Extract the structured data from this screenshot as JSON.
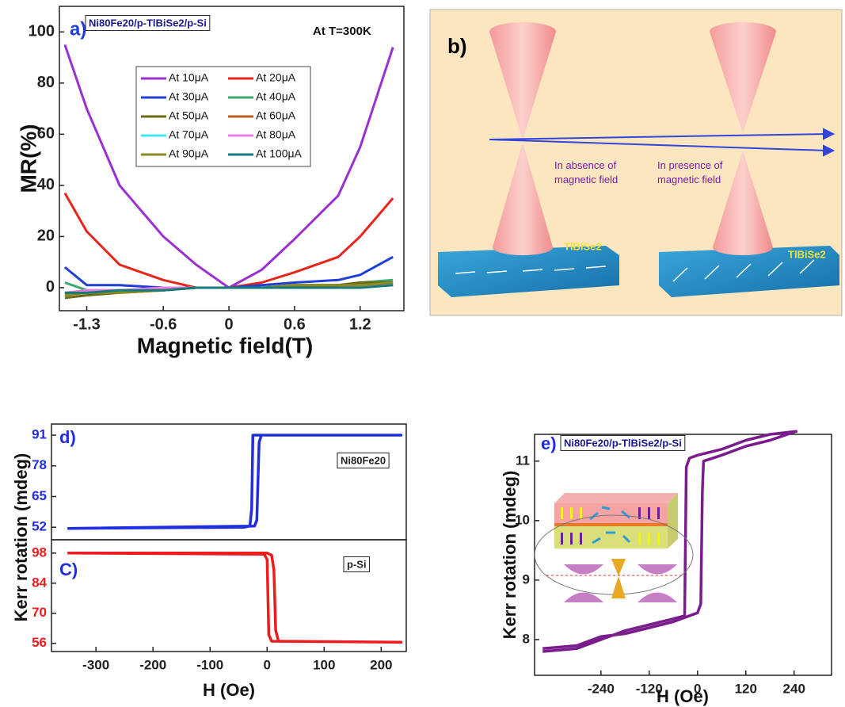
{
  "chart_data": [
    {
      "type": "line",
      "panel_label": "a)",
      "header": "Ni80Fe20/p-TlBiSe2/p-Si",
      "note": "At T=300K",
      "xlabel": "Magnetic field(T)",
      "ylabel": "MR(%)",
      "xlim": [
        -1.55,
        1.6
      ],
      "ylim": [
        -9,
        110
      ],
      "xticks": [
        -1.3,
        -0.6,
        0,
        0.6,
        1.2
      ],
      "yticks": [
        0,
        20,
        40,
        60,
        80,
        100
      ],
      "legend": true,
      "x": [
        -1.5,
        -1.3,
        -1.0,
        -0.6,
        -0.3,
        0,
        0.3,
        0.6,
        1.0,
        1.2,
        1.5
      ],
      "series": [
        {
          "name": "At 10μA",
          "color": "#9b30d0",
          "values": [
            95,
            70,
            40,
            20,
            9,
            0,
            7,
            19,
            36,
            55,
            94
          ]
        },
        {
          "name": "At 20μA",
          "color": "#e8251b",
          "values": [
            37,
            22,
            9,
            3,
            0,
            0,
            2,
            6,
            12,
            20,
            35
          ]
        },
        {
          "name": "At 30μA",
          "color": "#1f3fd6",
          "values": [
            8,
            1,
            1,
            0,
            0,
            0,
            1,
            2,
            3,
            5,
            12
          ]
        },
        {
          "name": "At 40μA",
          "color": "#3aa870",
          "values": [
            2,
            -1,
            -1,
            -1,
            0,
            0,
            0,
            1,
            1,
            2,
            3
          ]
        },
        {
          "name": "At 50μA",
          "color": "#6b6b14",
          "values": [
            -4,
            -3,
            -2,
            -1,
            0,
            0,
            0,
            1,
            1,
            2,
            2
          ]
        },
        {
          "name": "At 60μA",
          "color": "#c05a1a",
          "values": [
            -2,
            -2,
            -1,
            -1,
            0,
            0,
            0,
            0,
            1,
            1,
            1
          ]
        },
        {
          "name": "At 70μA",
          "color": "#3fe8f0",
          "values": [
            -2,
            -2,
            -1,
            -1,
            0,
            0,
            0,
            0,
            0,
            1,
            1
          ]
        },
        {
          "name": "At 80μA",
          "color": "#f07ce8",
          "values": [
            -2,
            -1,
            -1,
            0,
            0,
            0,
            0,
            0,
            0,
            1,
            1
          ]
        },
        {
          "name": "At 90μA",
          "color": "#8a8a20",
          "values": [
            -3,
            -2,
            -2,
            -1,
            0,
            0,
            0,
            1,
            1,
            1,
            2
          ]
        },
        {
          "name": "At 100μA",
          "color": "#157a7a",
          "values": [
            -2,
            -2,
            -1,
            -1,
            0,
            0,
            0,
            0,
            0,
            0,
            1
          ]
        }
      ]
    },
    {
      "type": "line",
      "panel_label": "d)",
      "note": "Ni80Fe20",
      "ylabel": "Kerr rotation (mdeg)",
      "xlim": [
        -378,
        244
      ],
      "ylim": [
        46.7,
        95.7
      ],
      "yticks": [
        52,
        65,
        78,
        91
      ],
      "series": [
        {
          "color": "#1f2fe0",
          "x": [
            -350,
            -40,
            -30,
            -27,
            -25,
            235,
            -10,
            -14,
            -18,
            -22,
            -350
          ],
          "values": [
            51.5,
            52,
            52.5,
            60,
            91,
            91,
            91,
            88,
            55,
            52.5,
            51.5
          ]
        }
      ]
    },
    {
      "type": "line",
      "panel_label": "C)",
      "note": "p-Si",
      "xlabel": "H (Oe)",
      "xlim": [
        -378,
        244
      ],
      "ylim": [
        52.2,
        104.2
      ],
      "xticks": [
        -300,
        -200,
        -100,
        0,
        100,
        200
      ],
      "yticks": [
        56,
        70,
        84,
        98
      ],
      "series": [
        {
          "color": "#ee1c1c",
          "x": [
            -350,
            -5,
            0,
            3,
            8,
            235,
            20,
            15,
            12,
            8,
            0,
            -350
          ],
          "values": [
            98,
            97.5,
            95,
            60,
            57,
            56.5,
            57,
            62,
            90,
            97,
            98,
            98
          ]
        }
      ]
    },
    {
      "type": "line",
      "panel_label": "e)",
      "header": "Ni80Fe20/p-TlBiSe2/p-Si",
      "xlabel": "H (Oe)",
      "ylabel": "Kerr rotation (mdeg)",
      "xlim": [
        -405,
        333
      ],
      "ylim": [
        7.4,
        11.45
      ],
      "xticks": [
        -240,
        -120,
        0,
        120,
        240
      ],
      "yticks": [
        8,
        9,
        10,
        11
      ],
      "series": [
        {
          "color": "#7a1c8c",
          "x": [
            -385,
            -300,
            -240,
            -180,
            -120,
            -60,
            0,
            8,
            12,
            15,
            60,
            120,
            180,
            245,
            180,
            120,
            60,
            0,
            -20,
            -28,
            -32,
            -60,
            -120,
            -180,
            -240,
            -300,
            -385
          ],
          "values": [
            7.85,
            7.9,
            8.05,
            8.1,
            8.2,
            8.3,
            8.45,
            8.6,
            10.5,
            11.0,
            11.1,
            11.25,
            11.35,
            11.5,
            11.45,
            11.35,
            11.2,
            11.1,
            11.05,
            10.9,
            8.4,
            8.35,
            8.25,
            8.15,
            8.0,
            7.85,
            7.8
          ]
        }
      ]
    }
  ],
  "diagram_b": {
    "panel_label": "b)",
    "left_caption": "In absence of magnetic field",
    "right_caption": "In presence of magnetic field",
    "left_material": "TlBiSe2",
    "right_material": "TlBiSe2"
  }
}
